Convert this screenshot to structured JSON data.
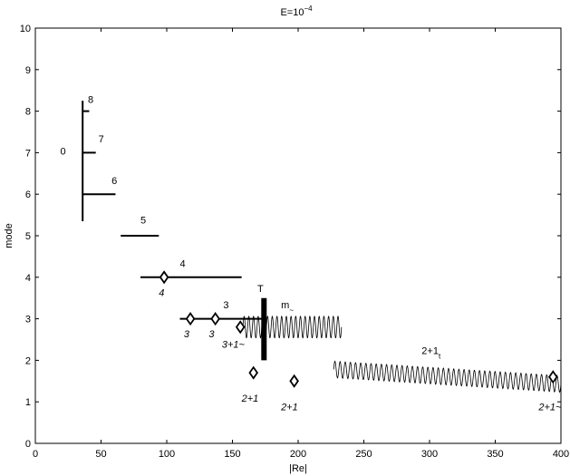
{
  "chart_data": {
    "type": "scatter",
    "title": "E=10",
    "title_superscript": "−4",
    "xlabel": "|Re|",
    "ylabel": "mode",
    "xlim": [
      0,
      400
    ],
    "ylim": [
      0,
      10
    ],
    "xticks": [
      "0",
      "50",
      "100",
      "150",
      "200",
      "250",
      "300",
      "350",
      "400"
    ],
    "yticks": [
      "0",
      "1",
      "2",
      "3",
      "4",
      "5",
      "6",
      "7",
      "8",
      "9",
      "10"
    ],
    "grid": false,
    "segments": [
      {
        "x1": 36,
        "y1": 5.35,
        "x2": 36,
        "y2": 8.25,
        "weight": "thick"
      },
      {
        "x1": 36,
        "y1": 8.0,
        "x2": 41,
        "y2": 8.0,
        "weight": "thick"
      },
      {
        "x1": 36,
        "y1": 7.0,
        "x2": 46,
        "y2": 7.0,
        "weight": "thick"
      },
      {
        "x1": 36,
        "y1": 6.0,
        "x2": 61,
        "y2": 6.0,
        "weight": "thick"
      },
      {
        "x1": 65,
        "y1": 5.0,
        "x2": 94,
        "y2": 5.0,
        "weight": "thick"
      },
      {
        "x1": 80,
        "y1": 4.0,
        "x2": 157,
        "y2": 4.0,
        "weight": "thick"
      },
      {
        "x1": 110,
        "y1": 3.0,
        "x2": 174,
        "y2": 3.0,
        "weight": "thick"
      },
      {
        "x1": 174,
        "y1": 2.0,
        "x2": 174,
        "y2": 3.5,
        "weight": "bar"
      }
    ],
    "points": [
      {
        "x": 98,
        "y": 4.0
      },
      {
        "x": 118,
        "y": 3.0
      },
      {
        "x": 137,
        "y": 3.0
      },
      {
        "x": 156,
        "y": 2.8
      },
      {
        "x": 166,
        "y": 1.7
      },
      {
        "x": 197,
        "y": 1.5
      },
      {
        "x": 394,
        "y": 1.6
      }
    ],
    "waves": [
      {
        "x_start": 158,
        "x_end": 233,
        "center": 2.8,
        "amp": 0.26,
        "drift": 0.0,
        "cycles": 21
      },
      {
        "x_start": 227,
        "x_end": 400,
        "center": 1.78,
        "amp": 0.2,
        "drift": -0.35,
        "cycles": 44
      }
    ],
    "annotations": [
      {
        "text": "8",
        "x": 40,
        "y": 8.2,
        "style": "normal",
        "sub": ""
      },
      {
        "text": "7",
        "x": 48,
        "y": 7.25,
        "style": "normal",
        "sub": ""
      },
      {
        "text": "0",
        "x": 19,
        "y": 6.95,
        "style": "normal",
        "sub": ""
      },
      {
        "text": "6",
        "x": 58,
        "y": 6.25,
        "style": "normal",
        "sub": ""
      },
      {
        "text": "5",
        "x": 80,
        "y": 5.3,
        "style": "normal",
        "sub": ""
      },
      {
        "text": "4",
        "x": 110,
        "y": 4.25,
        "style": "normal",
        "sub": ""
      },
      {
        "text": "4",
        "x": 94,
        "y": 3.55,
        "style": "italic",
        "sub": ""
      },
      {
        "text": "3",
        "x": 143,
        "y": 3.25,
        "style": "normal",
        "sub": ""
      },
      {
        "text": "T",
        "x": 169,
        "y": 3.65,
        "style": "normal",
        "sub": ""
      },
      {
        "text": "m",
        "x": 187,
        "y": 3.25,
        "style": "normal",
        "sub": "~"
      },
      {
        "text": "3",
        "x": 113,
        "y": 2.55,
        "style": "italic",
        "sub": ""
      },
      {
        "text": "3",
        "x": 132,
        "y": 2.55,
        "style": "italic",
        "sub": ""
      },
      {
        "text": "3+1~",
        "x": 142,
        "y": 2.3,
        "style": "italic",
        "sub": ""
      },
      {
        "text": "2+1",
        "x": 157,
        "y": 1.0,
        "style": "italic",
        "sub": ""
      },
      {
        "text": "2+1",
        "x": 187,
        "y": 0.8,
        "style": "italic",
        "sub": ""
      },
      {
        "text": "2+1",
        "x": 294,
        "y": 2.15,
        "style": "normal",
        "sub": "t"
      },
      {
        "text": "2+1~",
        "x": 383,
        "y": 0.8,
        "style": "italic",
        "sub": ""
      }
    ]
  }
}
